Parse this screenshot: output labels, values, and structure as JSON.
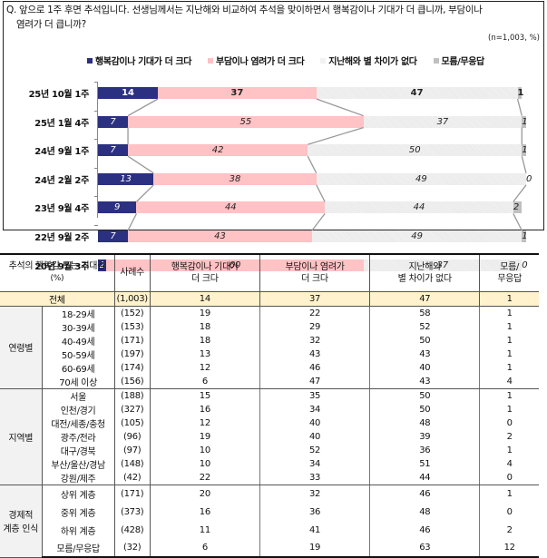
{
  "question": {
    "line1": "Q. 앞으로 1주 후면 추석입니다. 선생님께서는 지난해와 비교하여 추석을 맞이하면서 행복감이나 기대가 더 큽니까, 부담이나",
    "line2": "염려가 더 큽니까?",
    "note": "(n=1,003,  %)"
  },
  "legend": [
    {
      "label": "행복감이나 기대가 더 크다",
      "color": "#2b3080"
    },
    {
      "label": "부담이나 염려가 더 크다",
      "color": "#ffc2c5"
    },
    {
      "label": "지난해와 별 차이가 없다",
      "color": "#eeeeee"
    },
    {
      "label": "모름/무응답",
      "color": "#c0c0c0"
    }
  ],
  "chart_data": {
    "type": "bar",
    "stacked": true,
    "orientation": "horizontal",
    "title": "Q. 앞으로 1주 후면 추석입니다. 선생님께서는 지난해와 비교하여 추석을 맞이하면서 행복감이나 기대가 더 큽니까, 부담이나 염려가 더 큽니까?",
    "note": "(n=1,003, %)",
    "categories": [
      "25년 10월 1주",
      "25년 1월 4주",
      "24년 9월 1주",
      "24년 2월 2주",
      "23년 9월 4주",
      "22년 9월 2주",
      "20년 9월 3주"
    ],
    "series": [
      {
        "name": "행복감이나 기대가 더 크다",
        "values": [
          14,
          7,
          7,
          13,
          9,
          7,
          2
        ]
      },
      {
        "name": "부담이나 염려가 더 크다",
        "values": [
          37,
          55,
          42,
          38,
          44,
          43,
          60
        ]
      },
      {
        "name": "지난해와 별 차이가 없다",
        "values": [
          47,
          37,
          50,
          49,
          44,
          49,
          37
        ]
      },
      {
        "name": "모름/무응답",
        "values": [
          1,
          1,
          1,
          0,
          2,
          1,
          0
        ]
      }
    ],
    "xlim": [
      0,
      100
    ],
    "legend_position": "top"
  },
  "table": {
    "headers": [
      "추석의 행복감 또는 기대감\n(%)",
      "사례수",
      "행복감이나 기대가\n더 크다",
      "부담이나 염려가\n더 크다",
      "지난해와\n별 차이가 없다",
      "모름/\n무응답"
    ],
    "header_h1": "추석의 행복감 또는 기대감",
    "header_h1b": "(%)",
    "header_h2": "사례수",
    "header_h3a": "행복감이나 기대가",
    "header_h3b": "더 크다",
    "header_h4a": "부담이나 염려가",
    "header_h4b": "더 크다",
    "header_h5a": "지난해와",
    "header_h5b": "별 차이가 없다",
    "header_h6a": "모름/",
    "header_h6b": "무응답",
    "total": {
      "label": "전체",
      "n": "(1,003)",
      "v": [
        "14",
        "37",
        "47",
        "1"
      ]
    },
    "groups": [
      {
        "name": "연령별",
        "rows": [
          {
            "label": "18-29세",
            "n": "(152)",
            "v": [
              "19",
              "22",
              "58",
              "1"
            ]
          },
          {
            "label": "30-39세",
            "n": "(153)",
            "v": [
              "18",
              "29",
              "52",
              "1"
            ]
          },
          {
            "label": "40-49세",
            "n": "(171)",
            "v": [
              "18",
              "32",
              "50",
              "1"
            ]
          },
          {
            "label": "50-59세",
            "n": "(197)",
            "v": [
              "13",
              "43",
              "43",
              "1"
            ]
          },
          {
            "label": "60-69세",
            "n": "(174)",
            "v": [
              "12",
              "46",
              "40",
              "1"
            ]
          },
          {
            "label": "70세 이상",
            "n": "(156)",
            "v": [
              "6",
              "47",
              "43",
              "4"
            ]
          }
        ]
      },
      {
        "name": "지역별",
        "rows": [
          {
            "label": "서울",
            "n": "(188)",
            "v": [
              "15",
              "35",
              "50",
              "1"
            ]
          },
          {
            "label": "인천/경기",
            "n": "(327)",
            "v": [
              "16",
              "34",
              "50",
              "1"
            ]
          },
          {
            "label": "대전/세종/충청",
            "n": "(105)",
            "v": [
              "12",
              "40",
              "48",
              "0"
            ]
          },
          {
            "label": "광주/전라",
            "n": "(96)",
            "v": [
              "19",
              "40",
              "39",
              "2"
            ]
          },
          {
            "label": "대구/경북",
            "n": "(97)",
            "v": [
              "10",
              "52",
              "36",
              "1"
            ]
          },
          {
            "label": "부산/울산/경남",
            "n": "(148)",
            "v": [
              "10",
              "34",
              "51",
              "4"
            ]
          },
          {
            "label": "강원/제주",
            "n": "(42)",
            "v": [
              "22",
              "33",
              "44",
              "0"
            ]
          }
        ]
      },
      {
        "name": "경제적 계층 인식",
        "name_line1": "경제적",
        "name_line2": "계층 인식",
        "rows": [
          {
            "label": "상위 계층",
            "n": "(171)",
            "v": [
              "20",
              "32",
              "46",
              "1"
            ]
          },
          {
            "label": "중위 계층",
            "n": "(373)",
            "v": [
              "16",
              "36",
              "48",
              "0"
            ]
          },
          {
            "label": "하위 계층",
            "n": "(428)",
            "v": [
              "11",
              "41",
              "46",
              "2"
            ]
          },
          {
            "label": "모름/무응답",
            "n": "(32)",
            "v": [
              "6",
              "19",
              "63",
              "12"
            ]
          }
        ]
      }
    ]
  }
}
